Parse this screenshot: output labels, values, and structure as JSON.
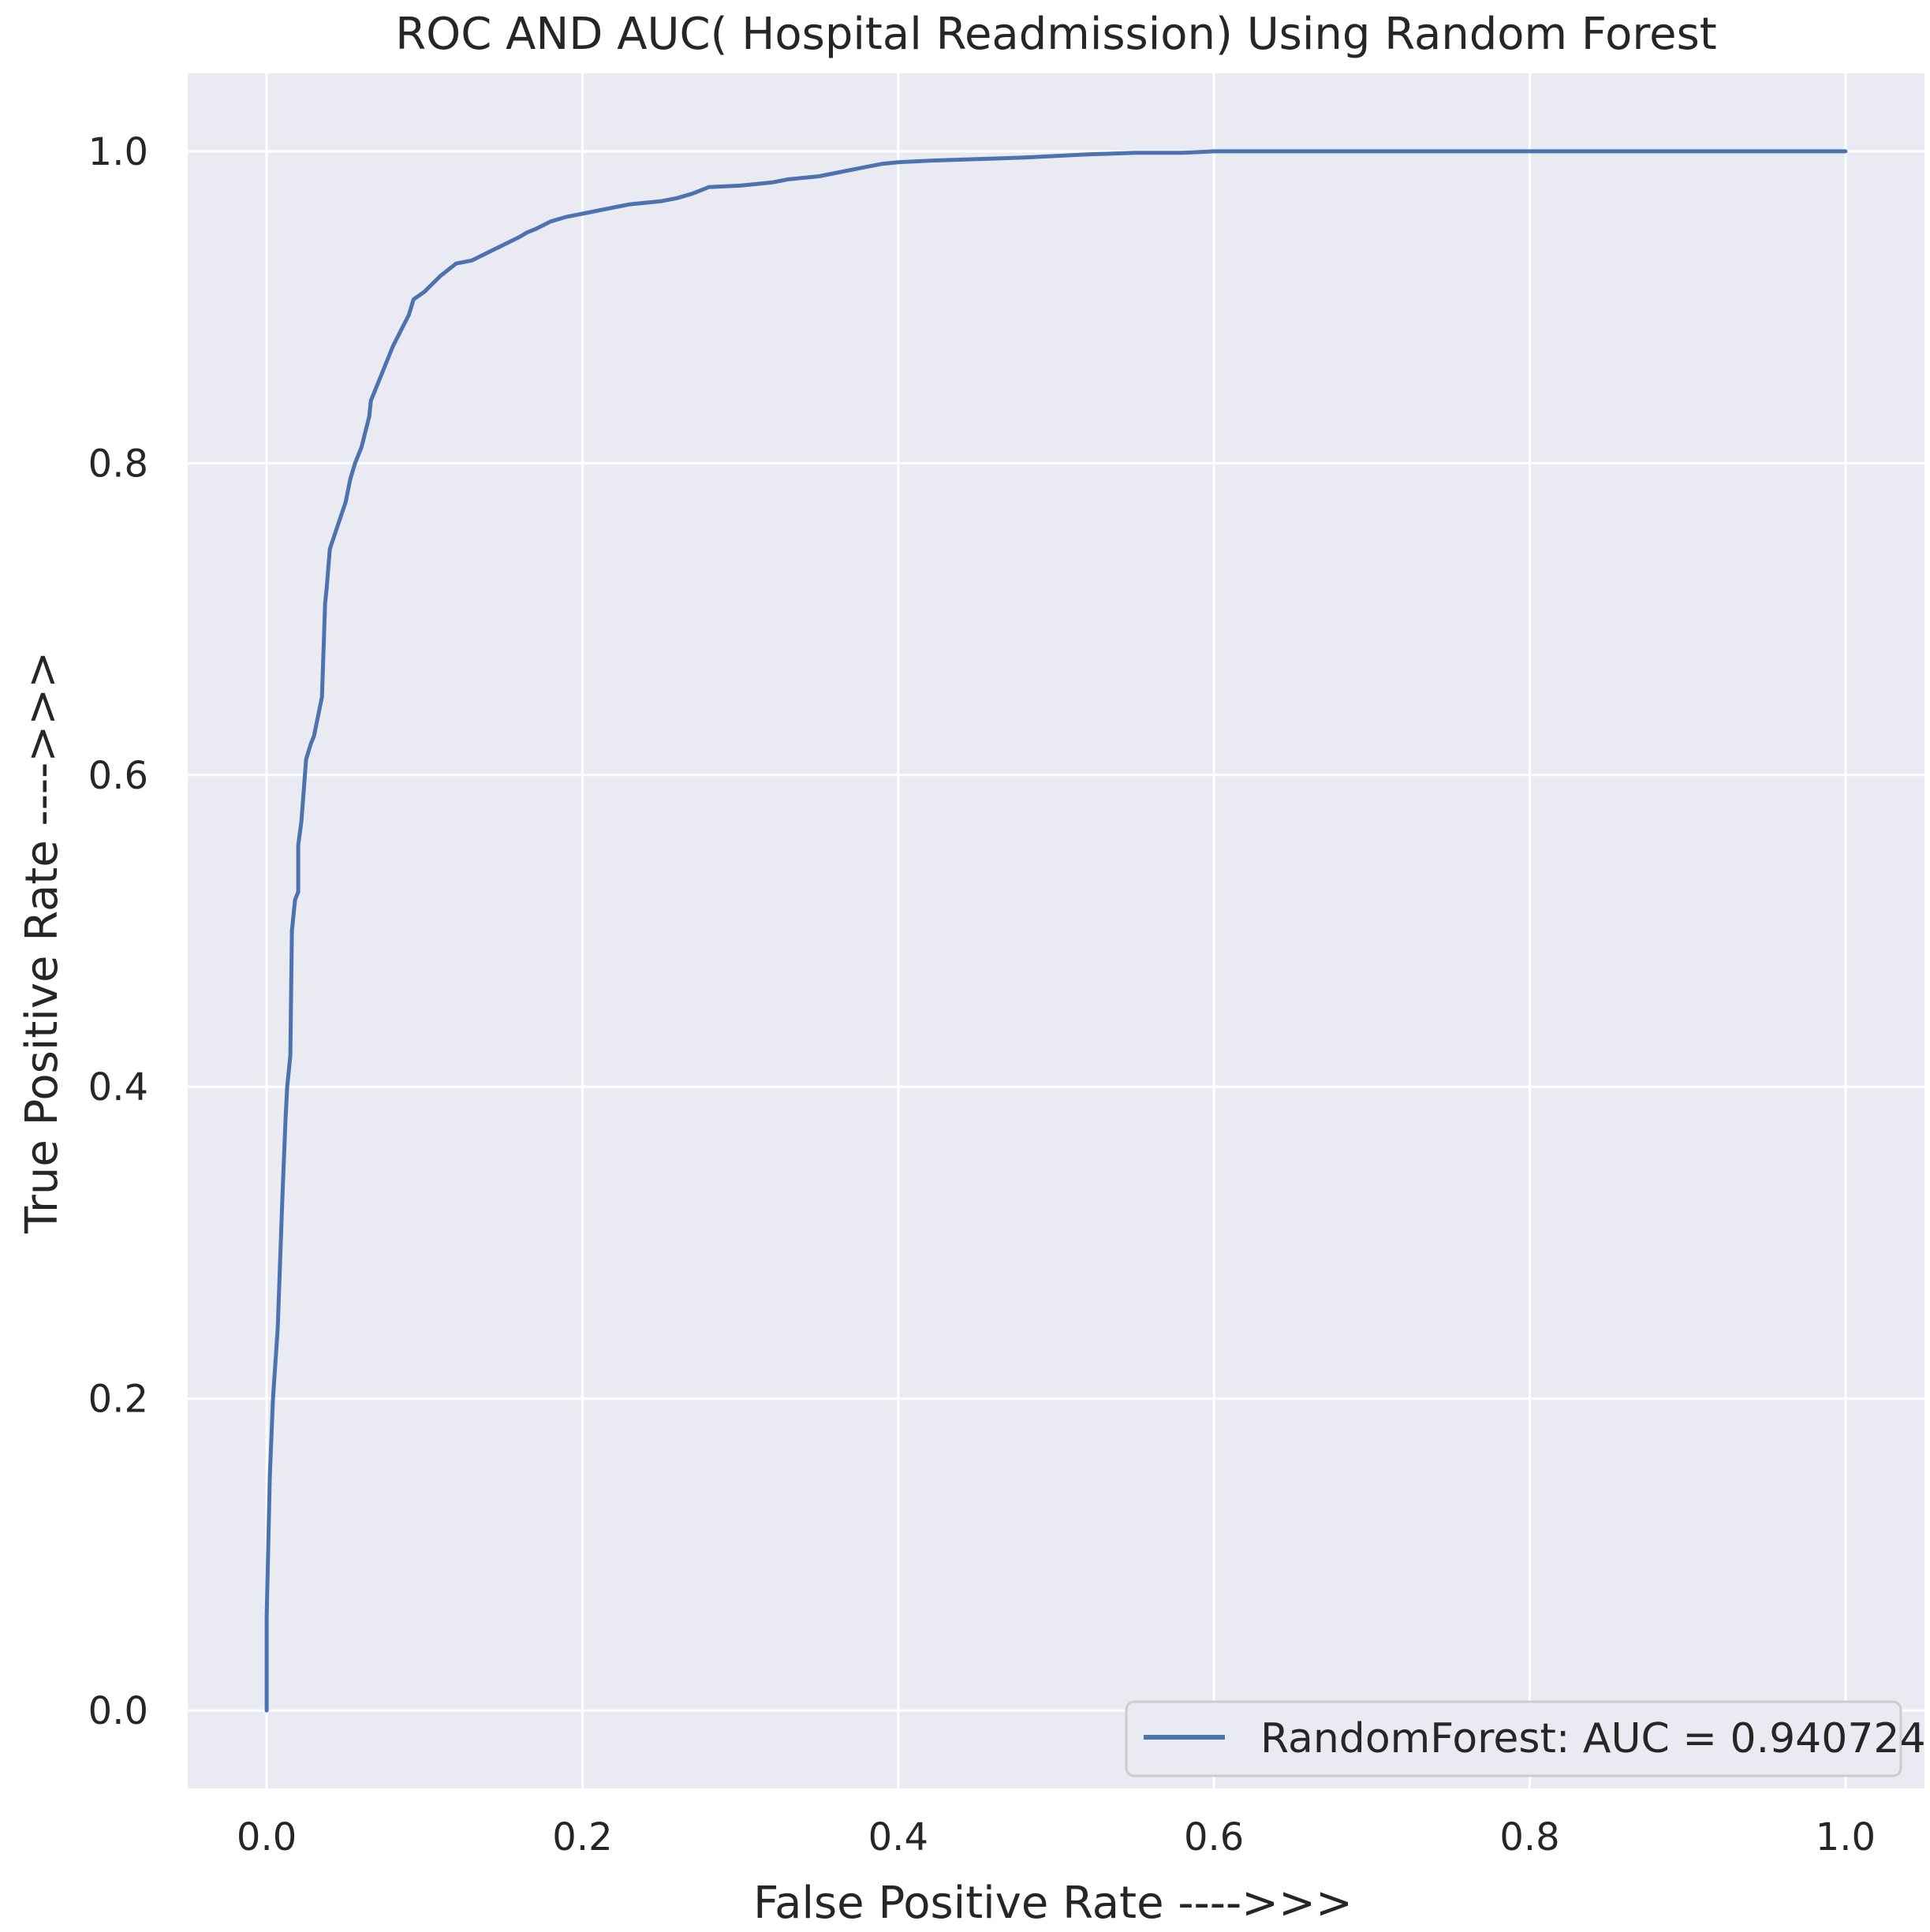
{
  "chart_data": {
    "type": "line",
    "title": "ROC AND AUC( Hospital Readmission) Using Random Forest",
    "xlabel": "False Positive Rate ---->>>",
    "ylabel": "True Positive Rate ---->>>",
    "xlim": [
      -0.05,
      1.05
    ],
    "ylim": [
      -0.05,
      1.05
    ],
    "x_ticks": [
      0.0,
      0.2,
      0.4,
      0.6,
      0.8,
      1.0
    ],
    "x_tick_labels": [
      "0.0",
      "0.2",
      "0.4",
      "0.6",
      "0.8",
      "1.0"
    ],
    "y_ticks": [
      0.0,
      0.2,
      0.4,
      0.6,
      0.8,
      1.0
    ],
    "y_tick_labels": [
      "0.0",
      "0.2",
      "0.4",
      "0.6",
      "0.8",
      "1.0"
    ],
    "grid": true,
    "legend_position": "lower-right",
    "colors": {
      "background": "#eaeaf2",
      "grid": "#ffffff",
      "line": "#4c72b0",
      "text": "#262626"
    },
    "series": [
      {
        "name": "RandomForest: AUC = 0.940724",
        "x": [
          0.0,
          0.0,
          0.002,
          0.004,
          0.007,
          0.01,
          0.012,
          0.013,
          0.014,
          0.015,
          0.016,
          0.018,
          0.02,
          0.02,
          0.022,
          0.025,
          0.028,
          0.03,
          0.035,
          0.036,
          0.037,
          0.038,
          0.04,
          0.045,
          0.05,
          0.053,
          0.056,
          0.06,
          0.065,
          0.066,
          0.07,
          0.072,
          0.074,
          0.076,
          0.08,
          0.085,
          0.09,
          0.093,
          0.1,
          0.105,
          0.11,
          0.12,
          0.13,
          0.14,
          0.15,
          0.16,
          0.165,
          0.17,
          0.18,
          0.19,
          0.2,
          0.21,
          0.22,
          0.23,
          0.25,
          0.26,
          0.27,
          0.275,
          0.28,
          0.3,
          0.32,
          0.33,
          0.35,
          0.36,
          0.38,
          0.39,
          0.4,
          0.42,
          0.45,
          0.48,
          0.5,
          0.52,
          0.55,
          0.58,
          0.6,
          0.65,
          0.7,
          0.72,
          0.75,
          0.8,
          0.9,
          1.0
        ],
        "y": [
          0.0,
          0.06,
          0.15,
          0.2,
          0.245,
          0.33,
          0.38,
          0.4,
          0.41,
          0.42,
          0.5,
          0.52,
          0.525,
          0.555,
          0.57,
          0.61,
          0.62,
          0.625,
          0.65,
          0.68,
          0.71,
          0.72,
          0.745,
          0.76,
          0.775,
          0.79,
          0.8,
          0.81,
          0.83,
          0.84,
          0.85,
          0.855,
          0.86,
          0.865,
          0.875,
          0.885,
          0.895,
          0.905,
          0.91,
          0.915,
          0.92,
          0.928,
          0.93,
          0.935,
          0.94,
          0.945,
          0.948,
          0.95,
          0.955,
          0.958,
          0.96,
          0.962,
          0.964,
          0.966,
          0.968,
          0.97,
          0.973,
          0.975,
          0.977,
          0.978,
          0.98,
          0.982,
          0.984,
          0.986,
          0.99,
          0.992,
          0.993,
          0.994,
          0.995,
          0.996,
          0.997,
          0.998,
          0.999,
          0.999,
          1.0,
          1.0,
          1.0,
          1.0,
          1.0,
          1.0,
          1.0,
          1.0
        ]
      }
    ]
  }
}
